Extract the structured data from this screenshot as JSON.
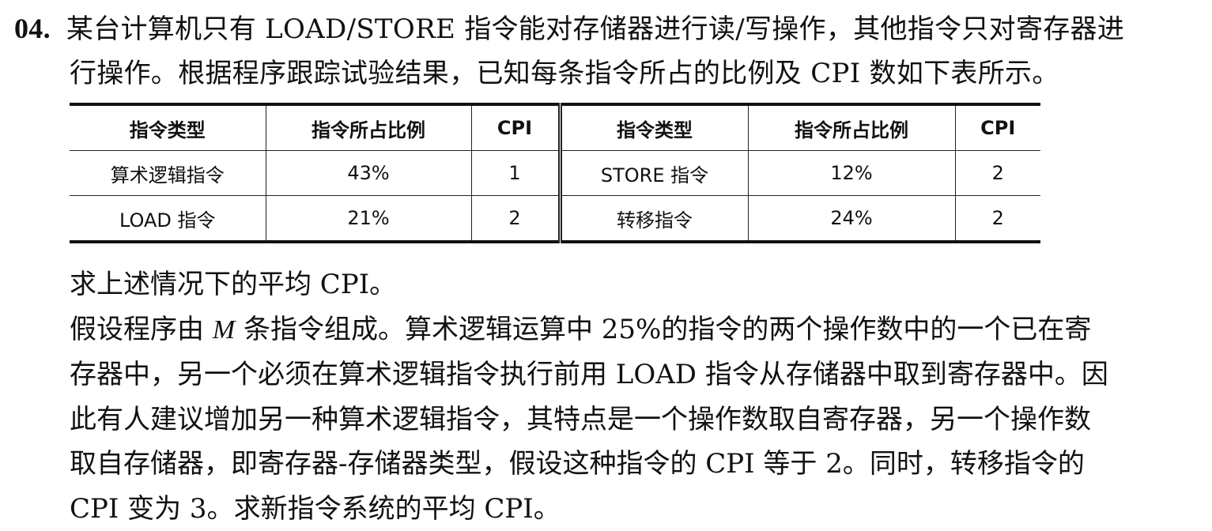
{
  "problem": {
    "number": "04.",
    "intro_line1": "某台计算机只有 LOAD/STORE 指令能对存储器进行读/写操作，其他指令只对寄存器进",
    "intro_line2": "行操作。根据程序跟踪试验结果，已知每条指令所占的比例及 CPI 数如下表所示。"
  },
  "table": {
    "headers": [
      "指令类型",
      "指令所占比例",
      "CPI",
      "指令类型",
      "指令所占比例",
      "CPI"
    ],
    "rows": [
      [
        "算术逻辑指令",
        "43%",
        "1",
        "STORE 指令",
        "12%",
        "2"
      ],
      [
        "LOAD 指令",
        "21%",
        "2",
        "转移指令",
        "24%",
        "2"
      ]
    ]
  },
  "questions": {
    "q1": "求上述情况下的平均 CPI。",
    "q2_line1_a": "假设程序由 ",
    "q2_var": "M",
    "q2_line1_b": " 条指令组成。算术逻辑运算中 25%的指令的两个操作数中的一个已在寄",
    "q2_line2": "存器中，另一个必须在算术逻辑指令执行前用 LOAD 指令从存储器中取到寄存器中。因",
    "q2_line3": "此有人建议增加另一种算术逻辑指令，其特点是一个操作数取自寄存器，另一个操作数",
    "q2_line4": "取自存储器，即寄存器-存储器类型，假设这种指令的 CPI 等于 2。同时，转移指令的",
    "q2_line5": "CPI 变为 3。求新指令系统的平均 CPI。"
  }
}
